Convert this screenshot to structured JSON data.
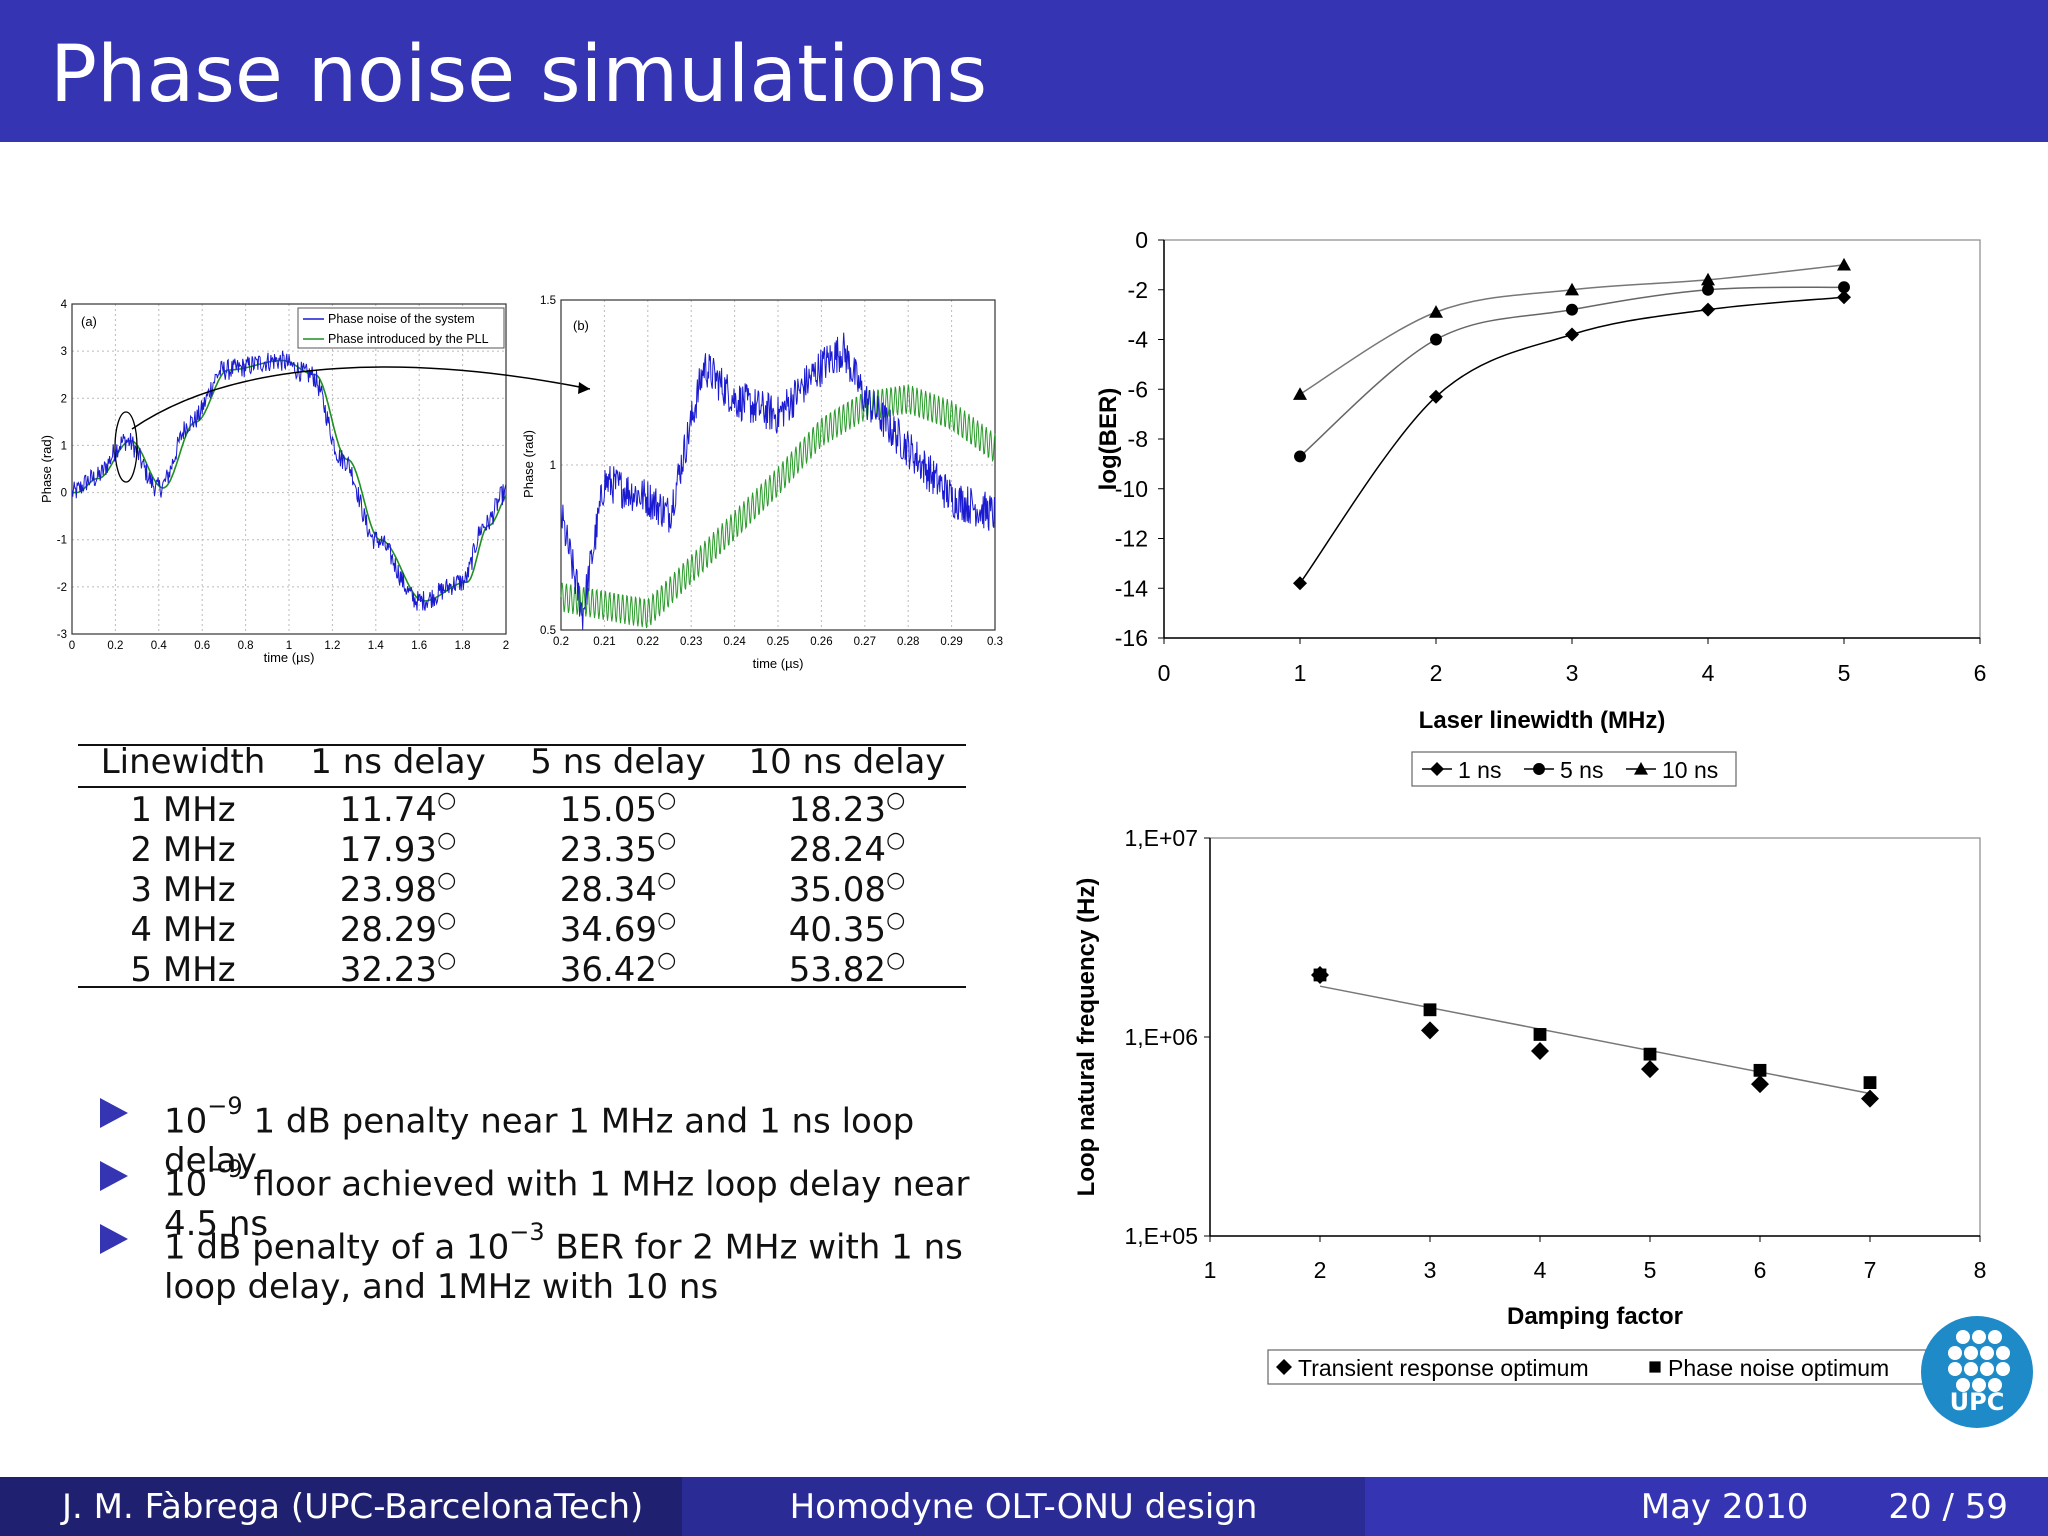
{
  "slide": {
    "title": "Phase noise simulations"
  },
  "footer": {
    "author": "J. M. Fàbrega  (UPC-BarcelonaTech)",
    "talk_title": "Homodyne OLT-ONU design",
    "date": "May 2010",
    "page": "20 / 59"
  },
  "figure_a": {
    "panel": "(a)",
    "ylabel": "Phase (rad)",
    "xlabel": "time (µs)",
    "xticks": [
      "0",
      "0.2",
      "0.4",
      "0.6",
      "0.8",
      "1",
      "1.2",
      "1.4",
      "1.6",
      "1.8",
      "2"
    ],
    "yticks": [
      "4",
      "3",
      "2",
      "1",
      "0",
      "-1",
      "-2",
      "-3"
    ],
    "legend": [
      "Phase noise of the system",
      "Phase introduced by the PLL"
    ],
    "colors": {
      "system": "#1a1ad0",
      "pll": "#1f8f1f"
    }
  },
  "figure_b": {
    "panel": "(b)",
    "ylabel": "Phase (rad)",
    "xlabel": "time (µs)",
    "xticks": [
      "0.2",
      "0.21",
      "0.22",
      "0.23",
      "0.24",
      "0.25",
      "0.26",
      "0.27",
      "0.28",
      "0.29",
      "0.3"
    ],
    "yticks": [
      "1.5",
      "1",
      "0.5"
    ]
  },
  "table": {
    "headers": [
      "Linewidth",
      "1 ns delay",
      "5 ns delay",
      "10 ns delay"
    ],
    "rows": [
      [
        "1 MHz",
        "11.74",
        "15.05",
        "18.23"
      ],
      [
        "2 MHz",
        "17.93",
        "23.35",
        "28.24"
      ],
      [
        "3 MHz",
        "23.98",
        "28.34",
        "35.08"
      ],
      [
        "4 MHz",
        "28.29",
        "34.69",
        "40.35"
      ],
      [
        "5 MHz",
        "32.23",
        "36.42",
        "53.82"
      ]
    ],
    "unit_symbol": "○"
  },
  "bullets": [
    {
      "pre": "10",
      "sup": "−9",
      "post": " 1 dB penalty near 1 MHz and 1 ns loop delay"
    },
    {
      "pre": "10",
      "sup": "−9",
      "post": " floor achieved with 1 MHz loop delay near 4.5 ns"
    },
    {
      "pre": "1 dB penalty of a 10",
      "sup": "−3",
      "post": " BER for 2 MHz with 1 ns loop delay, and 1MHz with 10 ns"
    }
  ],
  "chart_data": [
    {
      "type": "line",
      "xlabel": "Laser linewidth (MHz)",
      "ylabel": "log(BER)",
      "xlim": [
        0,
        6
      ],
      "ylim": [
        -16,
        0
      ],
      "xticks": [
        "0",
        "1",
        "2",
        "3",
        "4",
        "5",
        "6"
      ],
      "yticks": [
        "0",
        "-2",
        "-4",
        "-6",
        "-8",
        "-10",
        "-12",
        "-14",
        "-16"
      ],
      "legend_position": "bottom",
      "x": [
        1,
        2,
        3,
        4,
        5
      ],
      "series": [
        {
          "name": "1 ns",
          "marker": "diamond",
          "values": [
            -13.8,
            -6.3,
            -3.8,
            -2.8,
            -2.3
          ]
        },
        {
          "name": "5 ns",
          "marker": "circle",
          "values": [
            -8.7,
            -4.0,
            -2.8,
            -2.0,
            -1.9
          ]
        },
        {
          "name": "10 ns",
          "marker": "triangle",
          "values": [
            -6.2,
            -2.9,
            -2.0,
            -1.6,
            -1.0
          ]
        }
      ]
    },
    {
      "type": "scatter",
      "xlabel": "Damping factor",
      "ylabel": "Loop natural frequency (Hz)",
      "xlim": [
        1,
        8
      ],
      "ylim_log10": [
        5,
        7
      ],
      "xticks": [
        "1",
        "2",
        "3",
        "4",
        "5",
        "6",
        "7",
        "8"
      ],
      "yticks": [
        "1,E+07",
        "1,E+06",
        "1,E+05"
      ],
      "legend_position": "bottom",
      "x": [
        2,
        3,
        4,
        5,
        6,
        7
      ],
      "series": [
        {
          "name": "Transient response optimum",
          "marker": "diamond",
          "values": [
            2050000,
            1080000,
            850000,
            690000,
            580000,
            490000
          ]
        },
        {
          "name": "Phase noise optimum",
          "marker": "square",
          "values": [
            2050000,
            1370000,
            1030000,
            820000,
            680000,
            590000
          ]
        }
      ],
      "trendline": [
        [
          2,
          1800000
        ],
        [
          7,
          520000
        ]
      ]
    }
  ],
  "logo": {
    "text": "UPC",
    "color": "#1f8ac8"
  }
}
